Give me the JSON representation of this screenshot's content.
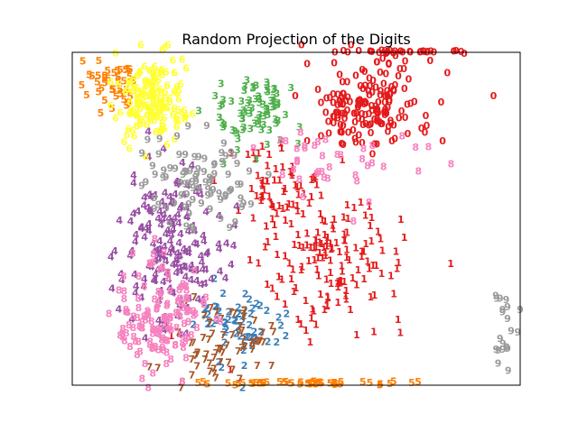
{
  "chart_data": {
    "type": "scatter",
    "title": "Random Projection of the Digits",
    "xlabel": "",
    "ylabel": "",
    "axes_ticks": false,
    "grid": false,
    "legend": "none",
    "marker": "digit label text",
    "colormap": "Set1",
    "colors": {
      "0": "#e41a1c",
      "1": "#e41a1c",
      "2": "#377eb8",
      "3": "#4daf4a",
      "4": "#984ea3",
      "5": "#ff7f00",
      "6": "#ffff33",
      "7": "#a65628",
      "8": "#f781bf",
      "9": "#999999"
    },
    "xlim": [
      0,
      1
    ],
    "ylim": [
      0,
      1
    ],
    "clusters": [
      {
        "label": "0",
        "center": [
          0.66,
          0.84
        ],
        "spread": [
          0.12,
          0.12
        ],
        "count": 170
      },
      {
        "label": "0",
        "center": [
          0.75,
          1.0
        ],
        "spread": [
          0.12,
          0.004
        ],
        "count": 30
      },
      {
        "label": "1",
        "center": [
          0.58,
          0.38
        ],
        "spread": [
          0.14,
          0.16
        ],
        "count": 150
      },
      {
        "label": "1",
        "center": [
          0.46,
          0.58
        ],
        "spread": [
          0.1,
          0.12
        ],
        "count": 60
      },
      {
        "label": "2",
        "center": [
          0.38,
          0.18
        ],
        "spread": [
          0.08,
          0.1
        ],
        "count": 60
      },
      {
        "label": "3",
        "center": [
          0.4,
          0.82
        ],
        "spread": [
          0.08,
          0.1
        ],
        "count": 80
      },
      {
        "label": "4",
        "center": [
          0.22,
          0.42
        ],
        "spread": [
          0.09,
          0.2
        ],
        "count": 180
      },
      {
        "label": "5",
        "center": [
          0.08,
          0.9
        ],
        "spread": [
          0.05,
          0.07
        ],
        "count": 40
      },
      {
        "label": "5",
        "center": [
          0.5,
          0.005
        ],
        "spread": [
          0.2,
          0.004
        ],
        "count": 50
      },
      {
        "label": "6",
        "center": [
          0.18,
          0.85
        ],
        "spread": [
          0.07,
          0.1
        ],
        "count": 160
      },
      {
        "label": "7",
        "center": [
          0.33,
          0.12
        ],
        "spread": [
          0.09,
          0.1
        ],
        "count": 70
      },
      {
        "label": "8",
        "center": [
          0.2,
          0.2
        ],
        "spread": [
          0.08,
          0.14
        ],
        "count": 140
      },
      {
        "label": "8",
        "center": [
          0.6,
          0.68
        ],
        "spread": [
          0.14,
          0.1
        ],
        "count": 40
      },
      {
        "label": "9",
        "center": [
          0.28,
          0.62
        ],
        "spread": [
          0.1,
          0.12
        ],
        "count": 90
      },
      {
        "label": "9",
        "center": [
          0.96,
          0.18
        ],
        "spread": [
          0.03,
          0.12
        ],
        "count": 20
      }
    ]
  }
}
